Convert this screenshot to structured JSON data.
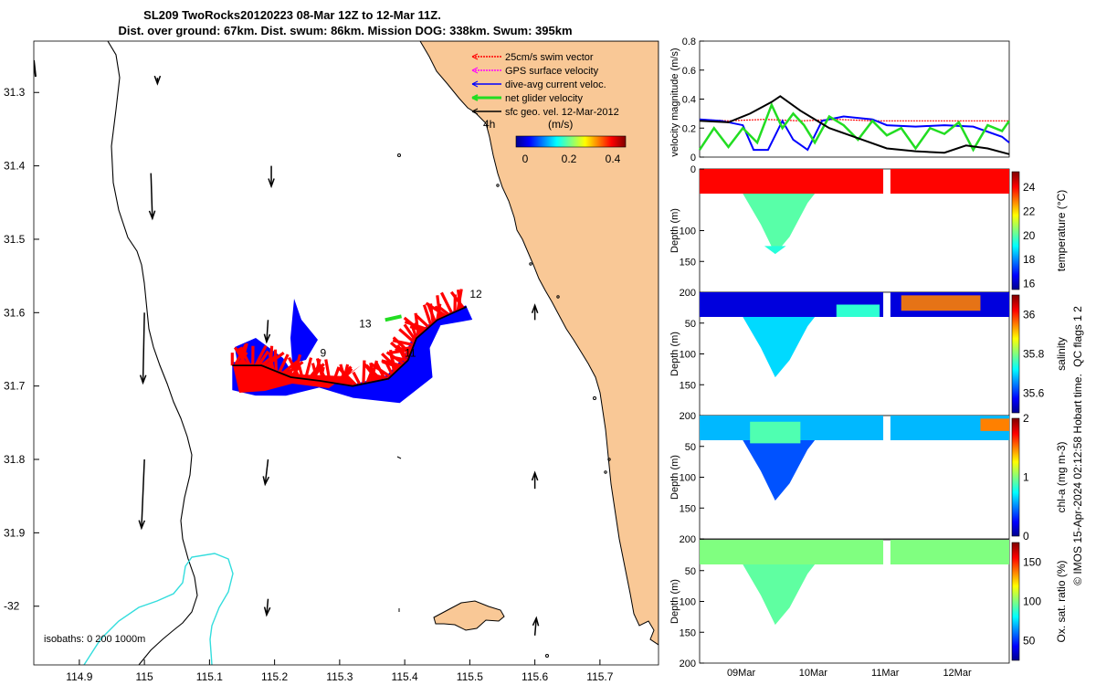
{
  "title": {
    "line1": "SL209 TwoRocks20120223 08-Mar 12Z to 12-Mar 11Z.",
    "line2": "Dist. over ground: 67km. Dist. swum: 86km. Mission DOG: 338km. Swum: 395km"
  },
  "colors": {
    "land": "#f9c896",
    "swim_vector": "#ff0000",
    "gps_velocity": "#ff00ff",
    "dive_avg_current": "#0000ff",
    "net_glider_velocity": "#22dd22",
    "sfc_geo_velocity": "#000000",
    "isobath_1000": "#33dddd"
  },
  "chart_data": [
    {
      "type": "map",
      "name": "glider-track-map",
      "xlim": [
        114.83,
        115.79
      ],
      "ylim": [
        -32.08,
        -31.23
      ],
      "x_ticks": [
        114.9,
        115,
        115.1,
        115.2,
        115.3,
        115.4,
        115.5,
        115.6,
        115.7
      ],
      "x_tick_labels": [
        "114.9",
        "115",
        "115.1",
        "115.2",
        "115.3",
        "115.4",
        "115.5",
        "115.6",
        "115.7"
      ],
      "y_ticks": [
        -31.3,
        -31.4,
        -31.5,
        -31.6,
        -31.7,
        -31.8,
        -31.9,
        -32.0
      ],
      "y_tick_labels": [
        "31.3",
        "31.4",
        "31.5",
        "31.6",
        "31.7",
        "31.8",
        "31.9",
        "-32"
      ],
      "legend": {
        "placement": "top-right",
        "entries": [
          "25cm/s swim vector",
          "GPS surface velocity",
          "dive-avg current veloc.",
          "net glider velocity",
          "sfc geo. vel. 12-Mar-2012"
        ],
        "scale_label": "4h"
      },
      "colorbar": {
        "title": "(m/s)",
        "ticks": [
          0,
          0.2,
          0.4
        ],
        "tick_labels": [
          "0",
          "0.2",
          "0.4"
        ],
        "range": [
          0,
          0.5
        ]
      },
      "waypoints": [
        {
          "label": "9",
          "lon": 115.27,
          "lat": -31.66
        },
        {
          "label": "11",
          "lon": 115.4,
          "lat": -31.66
        },
        {
          "label": "12",
          "lon": 115.5,
          "lat": -31.58
        },
        {
          "label": "13",
          "lon": 115.33,
          "lat": -31.62
        }
      ],
      "track": [
        {
          "lon": 115.135,
          "lat": -31.672
        },
        {
          "lon": 115.18,
          "lat": -31.672
        },
        {
          "lon": 115.225,
          "lat": -31.688
        },
        {
          "lon": 115.27,
          "lat": -31.693
        },
        {
          "lon": 115.32,
          "lat": -31.7
        },
        {
          "lon": 115.375,
          "lat": -31.69
        },
        {
          "lon": 115.405,
          "lat": -31.665
        },
        {
          "lon": 115.418,
          "lat": -31.635
        },
        {
          "lon": 115.45,
          "lat": -31.61
        },
        {
          "lon": 115.495,
          "lat": -31.592
        }
      ],
      "geo_vectors": [
        {
          "lon": 115.02,
          "lat": -31.28,
          "u": 0.0,
          "v": -0.04
        },
        {
          "lon": 115.01,
          "lat": -31.41,
          "u": 0.01,
          "v": -0.31
        },
        {
          "lon": 115.0,
          "lat": -31.6,
          "u": -0.01,
          "v": -0.48
        },
        {
          "lon": 115.0,
          "lat": -31.8,
          "u": -0.02,
          "v": -0.47
        },
        {
          "lon": 115.195,
          "lat": -31.4,
          "u": 0.0,
          "v": -0.14
        },
        {
          "lon": 115.19,
          "lat": -31.61,
          "u": -0.01,
          "v": -0.15
        },
        {
          "lon": 115.19,
          "lat": -31.8,
          "u": -0.02,
          "v": -0.17
        },
        {
          "lon": 115.19,
          "lat": -31.99,
          "u": -0.01,
          "v": -0.11
        },
        {
          "lon": 115.6,
          "lat": -31.61,
          "u": 0.0,
          "v": 0.1
        },
        {
          "lon": 115.6,
          "lat": -31.84,
          "u": 0.0,
          "v": 0.11
        },
        {
          "lon": 115.6,
          "lat": -32.04,
          "u": 0.01,
          "v": 0.12
        }
      ],
      "isobaths_label": "isobaths: 0   200  1000m"
    },
    {
      "type": "line",
      "name": "velocity-magnitude-timeseries",
      "ylabel": "velocity magnitude (m/s)",
      "ylim": [
        0,
        0.8
      ],
      "y_ticks": [
        0,
        0.2,
        0.4,
        0.6,
        0.8
      ],
      "y_tick_labels": [
        "0",
        "0.2",
        "0.4",
        "0.6",
        "0.8"
      ],
      "x_range_days": [
        8.6,
        12.9
      ],
      "series": [
        {
          "name": "swim",
          "color": "#ff0000",
          "x": [
            8.6,
            9.0,
            9.5,
            10.0,
            10.5,
            11.0,
            11.5,
            12.0,
            12.5,
            12.9
          ],
          "y": [
            0.26,
            0.25,
            0.26,
            0.25,
            0.26,
            0.25,
            0.25,
            0.25,
            0.25,
            0.25
          ]
        },
        {
          "name": "dive-avg current",
          "color": "#0000ff",
          "x": [
            8.6,
            8.9,
            9.2,
            9.35,
            9.55,
            9.75,
            9.9,
            10.1,
            10.3,
            10.6,
            11.0,
            11.2,
            11.6,
            12.0,
            12.4,
            12.8,
            12.9
          ],
          "y": [
            0.26,
            0.25,
            0.22,
            0.05,
            0.05,
            0.25,
            0.12,
            0.05,
            0.25,
            0.28,
            0.26,
            0.22,
            0.21,
            0.22,
            0.21,
            0.14,
            0.1
          ]
        },
        {
          "name": "net glider",
          "color": "#22dd22",
          "x": [
            8.6,
            8.8,
            9.0,
            9.2,
            9.4,
            9.6,
            9.75,
            9.9,
            10.05,
            10.2,
            10.4,
            10.6,
            10.8,
            11.0,
            11.2,
            11.4,
            11.6,
            11.8,
            12.0,
            12.2,
            12.4,
            12.6,
            12.8,
            12.9
          ],
          "y": [
            0.05,
            0.2,
            0.07,
            0.2,
            0.1,
            0.36,
            0.2,
            0.3,
            0.22,
            0.1,
            0.28,
            0.22,
            0.12,
            0.25,
            0.15,
            0.2,
            0.06,
            0.2,
            0.16,
            0.24,
            0.05,
            0.22,
            0.18,
            0.25
          ]
        },
        {
          "name": "sfc geo",
          "color": "#000000",
          "x": [
            8.6,
            9.0,
            9.3,
            9.6,
            9.72,
            10.0,
            10.4,
            10.8,
            11.2,
            11.6,
            12.0,
            12.3,
            12.6,
            12.9
          ],
          "y": [
            0.25,
            0.24,
            0.3,
            0.38,
            0.42,
            0.32,
            0.2,
            0.13,
            0.06,
            0.04,
            0.03,
            0.08,
            0.06,
            0.02
          ]
        }
      ]
    },
    {
      "type": "heatmap",
      "name": "temperature-section",
      "ylabel": "Depth (m)",
      "clabel": "temperature (°C)",
      "ylim": [
        200,
        0
      ],
      "y_tick_labels": [
        "0",
        "100",
        "150",
        "200"
      ],
      "y_tick_values": [
        0,
        100,
        150,
        200
      ],
      "c_range": [
        15.5,
        25.3
      ],
      "c_ticks": [
        16,
        18,
        20,
        22,
        24
      ],
      "c_tick_labels": [
        "16",
        "18",
        "20",
        "22",
        "24"
      ],
      "typical_value": 24,
      "deep_value": 20
    },
    {
      "type": "heatmap",
      "name": "salinity-section",
      "ylabel": "Depth (m)",
      "clabel": "salinity",
      "ylim": [
        200,
        0
      ],
      "y_tick_labels": [
        "50",
        "100",
        "150",
        "200"
      ],
      "y_tick_values": [
        50,
        100,
        150,
        200
      ],
      "c_range": [
        35.5,
        36.1
      ],
      "c_ticks": [
        35.6,
        35.8,
        36
      ],
      "c_tick_labels": [
        "35.6",
        "35.8",
        "36"
      ],
      "typical_value": 35.55,
      "deep_value": 35.7
    },
    {
      "type": "heatmap",
      "name": "chla-section",
      "ylabel": "Depth (m)",
      "clabel": "chl-a (mg m-3)",
      "ylim": [
        200,
        0
      ],
      "y_tick_labels": [
        "50",
        "100",
        "150",
        "200"
      ],
      "y_tick_values": [
        50,
        100,
        150,
        200
      ],
      "c_range": [
        0,
        2
      ],
      "c_ticks": [
        0,
        1,
        2
      ],
      "c_tick_labels": [
        "0",
        "1",
        "2"
      ],
      "typical_value": 0.6,
      "deep_value": 0.4
    },
    {
      "type": "heatmap",
      "name": "oxygen-section",
      "ylabel": "Depth (m)",
      "clabel": "Ox. sat. ratio (%)",
      "ylim": [
        200,
        0
      ],
      "y_tick_labels": [
        "50",
        "100",
        "150",
        "200"
      ],
      "y_tick_values": [
        50,
        100,
        150,
        200
      ],
      "c_range": [
        25,
        175
      ],
      "c_ticks": [
        50,
        100,
        150
      ],
      "c_tick_labels": [
        "50",
        "100",
        "150"
      ],
      "typical_value": 100,
      "deep_value": 95,
      "x_tick_labels": [
        "09Mar",
        "10Mar",
        "11Mar",
        "12Mar"
      ],
      "x_tick_days": [
        9,
        10,
        11,
        12
      ]
    }
  ],
  "footer": {
    "qc_label": "QC flags 1  2",
    "credit": "© IMOS 15-Apr-2024 02:12:58 Hobart time."
  }
}
